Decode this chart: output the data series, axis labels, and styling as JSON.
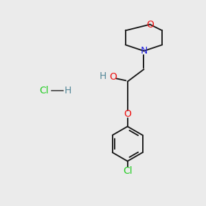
{
  "bg_color": "#ebebeb",
  "bond_color": "#1a1a1a",
  "O_color": "#ee1111",
  "N_color": "#2222dd",
  "Cl_color": "#22cc22",
  "H_color": "#558899",
  "fig_w": 3.0,
  "fig_h": 3.0,
  "dpi": 100,
  "lw": 1.4,
  "fs": 9.5,
  "xlim": [
    0,
    10
  ],
  "ylim": [
    0,
    10
  ]
}
